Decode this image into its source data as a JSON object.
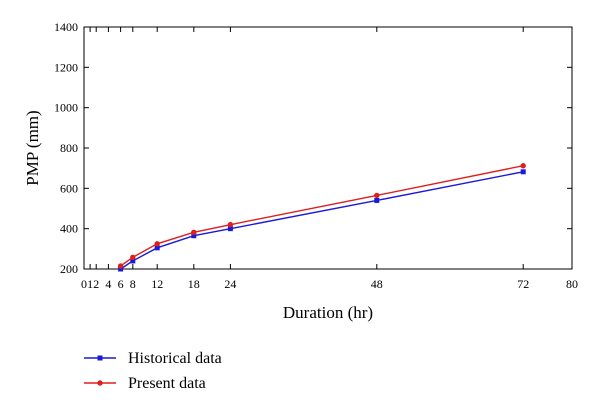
{
  "chart_data": {
    "type": "line",
    "xlabel": "Duration (hr)",
    "ylabel": "PMP (mm)",
    "xlim": [
      0,
      80
    ],
    "ylim": [
      200,
      1400
    ],
    "x_ticks": [
      "0",
      "1",
      "2",
      "4",
      "6",
      "8",
      "12",
      "18",
      "24",
      "48",
      "72",
      "80"
    ],
    "y_ticks": [
      "200",
      "400",
      "600",
      "800",
      "1000",
      "1200",
      "1400"
    ],
    "grid": false,
    "legend_position": "bottom-left",
    "x": [
      6,
      8,
      12,
      18,
      24,
      48,
      72
    ],
    "series": [
      {
        "name": "Historical data",
        "color": "#1a1adb",
        "marker": "square",
        "values": [
          200,
          240,
          305,
          365,
          400,
          540,
          682
        ]
      },
      {
        "name": "Present data",
        "color": "#e01e1e",
        "marker": "circle",
        "values": [
          215,
          258,
          325,
          382,
          420,
          565,
          712
        ]
      }
    ]
  }
}
